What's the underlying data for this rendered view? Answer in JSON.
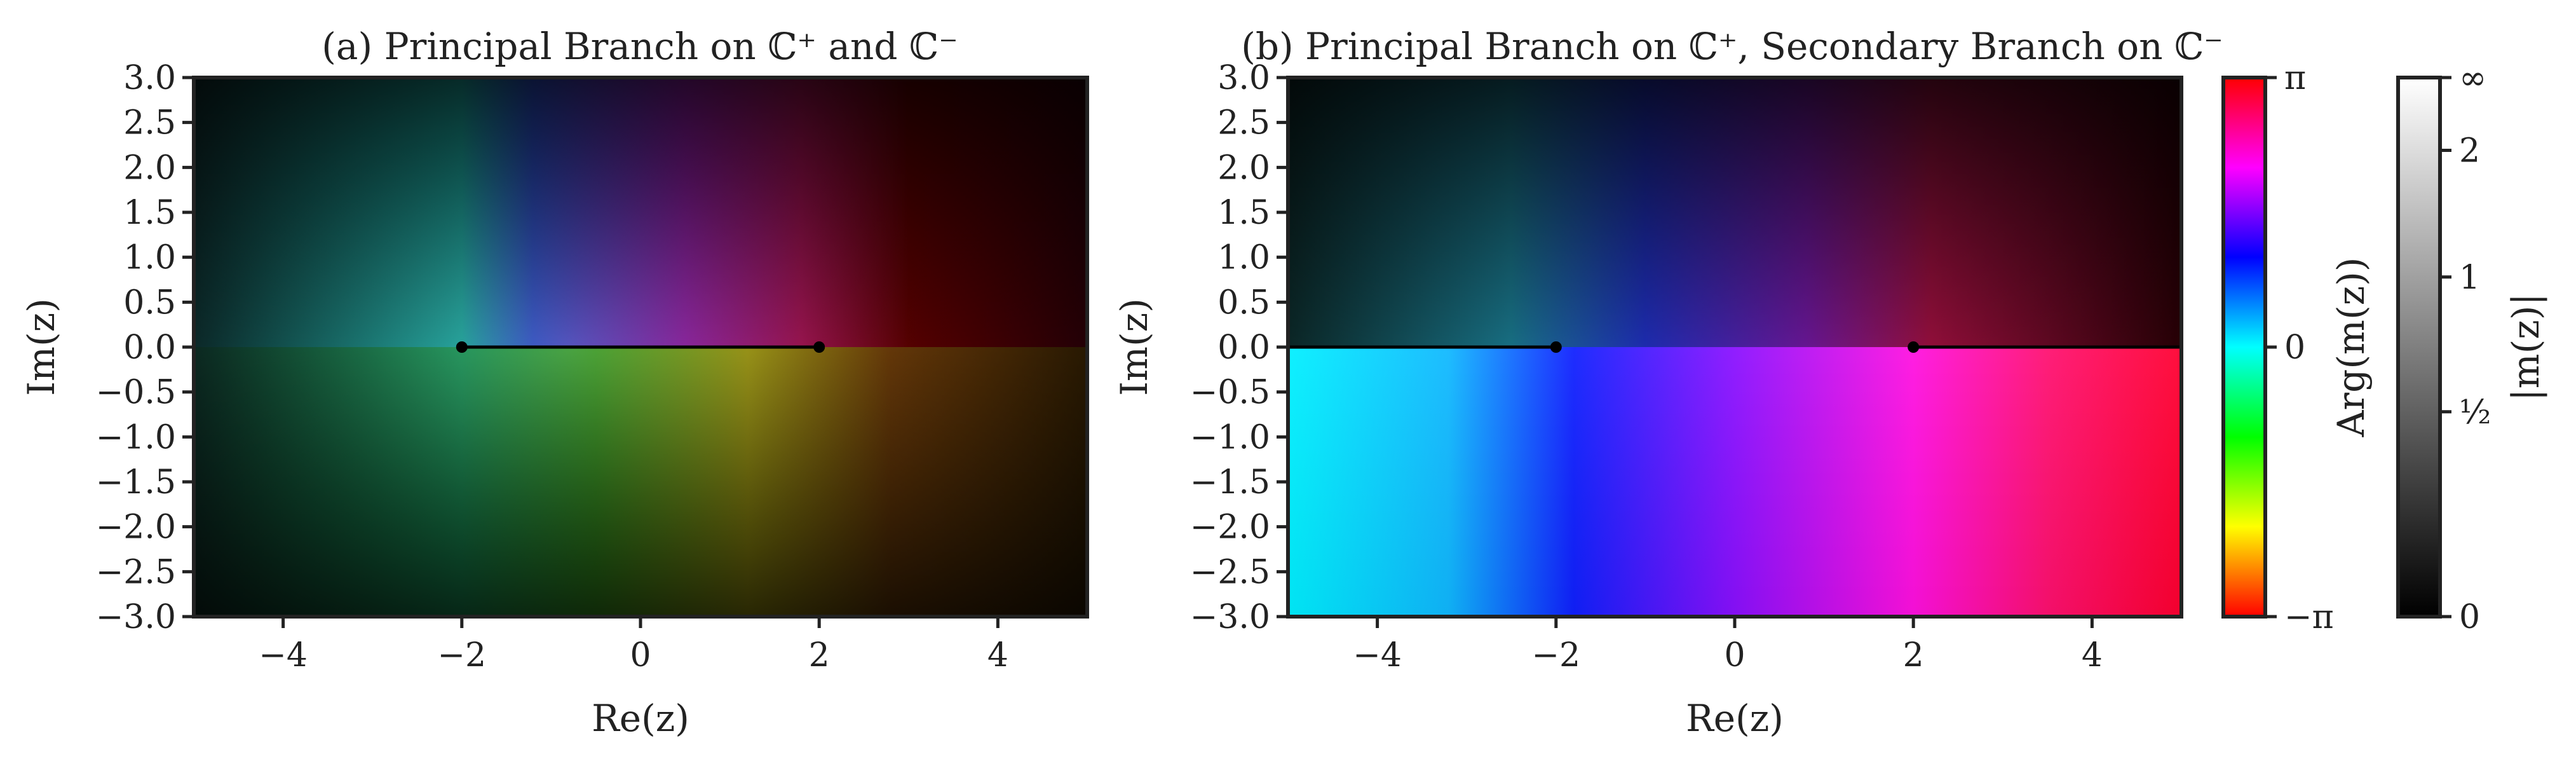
{
  "chart_data": [
    {
      "type": "heatmap",
      "title": "(a) Principal Branch on ℂ⁺ and ℂ⁻",
      "xlabel": "Re(z)",
      "ylabel": "Im(z)",
      "xlim": [
        -5,
        5
      ],
      "ylim": [
        -3,
        3
      ],
      "xticks": [
        -4,
        -2,
        0,
        2,
        4
      ],
      "xtick_labels": [
        "−4",
        "−2",
        "0",
        "2",
        "4"
      ],
      "yticks": [
        3.0,
        2.5,
        2.0,
        1.5,
        1.0,
        0.5,
        0.0,
        -0.5,
        -1.0,
        -1.5,
        -2.0,
        -2.5,
        -3.0
      ],
      "ytick_labels": [
        "3.0",
        "2.5",
        "2.0",
        "1.5",
        "1.0",
        "0.5",
        "0.0",
        "−0.5",
        "−1.0",
        "−1.5",
        "−2.0",
        "−2.5",
        "−3.0"
      ],
      "branch_points": [
        [
          -2,
          0
        ],
        [
          2,
          0
        ]
      ],
      "branch_cut": [
        [
          -2,
          0
        ],
        [
          2,
          0
        ]
      ],
      "coloring": "domain coloring: hue = Arg(m(z)), lightness = |m(z)|",
      "branch": "principal"
    },
    {
      "type": "heatmap",
      "title": "(b) Principal Branch on ℂ⁺, Secondary Branch on ℂ⁻",
      "xlabel": "Re(z)",
      "ylabel": "Im(z)",
      "xlim": [
        -5,
        5
      ],
      "ylim": [
        -3,
        3
      ],
      "xticks": [
        -4,
        -2,
        0,
        2,
        4
      ],
      "xtick_labels": [
        "−4",
        "−2",
        "0",
        "2",
        "4"
      ],
      "yticks": [
        3.0,
        2.5,
        2.0,
        1.5,
        1.0,
        0.5,
        0.0,
        -0.5,
        -1.0,
        -1.5,
        -2.0,
        -2.5,
        -3.0
      ],
      "ytick_labels": [
        "3.0",
        "2.5",
        "2.0",
        "1.5",
        "1.0",
        "0.5",
        "0.0",
        "−0.5",
        "−1.0",
        "−1.5",
        "−2.0",
        "−2.5",
        "−3.0"
      ],
      "branch_points": [
        [
          -2,
          0
        ],
        [
          2,
          0
        ]
      ],
      "branch_cuts": [
        [
          [
            -5,
            0
          ],
          [
            -2,
            0
          ]
        ],
        [
          [
            2,
            0
          ],
          [
            5,
            0
          ]
        ]
      ],
      "coloring": "domain coloring: hue = Arg(m(z)), lightness = |m(z)|",
      "branch": "principal upper half-plane, secondary lower half-plane"
    }
  ],
  "colorbars": {
    "arg": {
      "label": "Arg(m(z))",
      "range": [
        -3.14159,
        3.14159
      ],
      "tick_labels": [
        "π",
        "0",
        "−π"
      ],
      "colors_bottom_to_top": [
        "#ff0000",
        "#ffff00",
        "#00ff00",
        "#00ffff",
        "#0000ff",
        "#ff00ff",
        "#ff0000"
      ]
    },
    "mod": {
      "label": "|m(z)|",
      "tick_labels": [
        "∞",
        "2",
        "1",
        "½",
        "0"
      ],
      "colors_bottom_to_top": [
        "#000000",
        "#ffffff"
      ]
    }
  }
}
